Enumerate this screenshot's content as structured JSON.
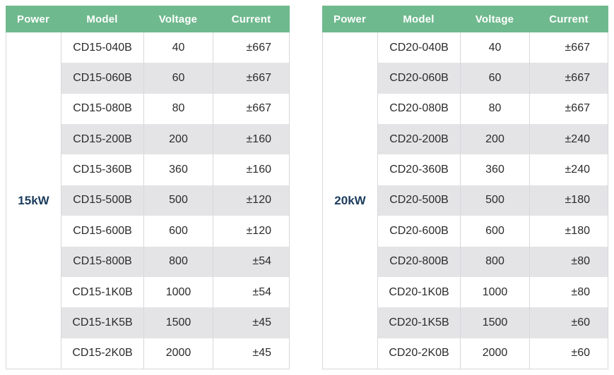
{
  "colors": {
    "header_bg": "#6FB98E",
    "header_text": "#FFFFFF",
    "row_stripe": "#E4E3E6",
    "row_white": "#FFFFFF",
    "border": "#D8D8DA",
    "cell_text": "#2B2B2D",
    "power_text": "#1C3C5E"
  },
  "tables": [
    {
      "power": "15kW",
      "columns": [
        "Power",
        "Model",
        "Voltage",
        "Current"
      ],
      "rows": [
        {
          "model": "CD15-040B",
          "voltage": "40",
          "current": "±667"
        },
        {
          "model": "CD15-060B",
          "voltage": "60",
          "current": "±667"
        },
        {
          "model": "CD15-080B",
          "voltage": "80",
          "current": "±667"
        },
        {
          "model": "CD15-200B",
          "voltage": "200",
          "current": "±160"
        },
        {
          "model": "CD15-360B",
          "voltage": "360",
          "current": "±160"
        },
        {
          "model": "CD15-500B",
          "voltage": "500",
          "current": "±120"
        },
        {
          "model": "CD15-600B",
          "voltage": "600",
          "current": "±120"
        },
        {
          "model": "CD15-800B",
          "voltage": "800",
          "current": "±54"
        },
        {
          "model": "CD15-1K0B",
          "voltage": "1000",
          "current": "±54"
        },
        {
          "model": "CD15-1K5B",
          "voltage": "1500",
          "current": "±45"
        },
        {
          "model": "CD15-2K0B",
          "voltage": "2000",
          "current": "±45"
        }
      ]
    },
    {
      "power": "20kW",
      "columns": [
        "Power",
        "Model",
        "Voltage",
        "Current"
      ],
      "rows": [
        {
          "model": "CD20-040B",
          "voltage": "40",
          "current": "±667"
        },
        {
          "model": "CD20-060B",
          "voltage": "60",
          "current": "±667"
        },
        {
          "model": "CD20-080B",
          "voltage": "80",
          "current": "±667"
        },
        {
          "model": "CD20-200B",
          "voltage": "200",
          "current": "±240"
        },
        {
          "model": "CD20-360B",
          "voltage": "360",
          "current": "±240"
        },
        {
          "model": "CD20-500B",
          "voltage": "500",
          "current": "±180"
        },
        {
          "model": "CD20-600B",
          "voltage": "600",
          "current": "±180"
        },
        {
          "model": "CD20-800B",
          "voltage": "800",
          "current": "±80"
        },
        {
          "model": "CD20-1K0B",
          "voltage": "1000",
          "current": "±80"
        },
        {
          "model": "CD20-1K5B",
          "voltage": "1500",
          "current": "±60"
        },
        {
          "model": "CD20-2K0B",
          "voltage": "2000",
          "current": "±60"
        }
      ]
    }
  ]
}
